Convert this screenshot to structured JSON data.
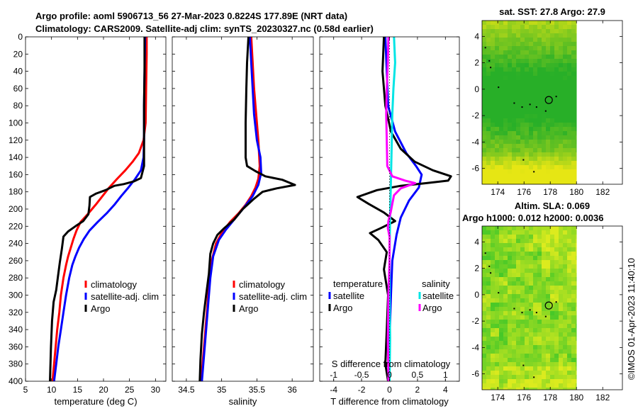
{
  "header": {
    "title_line1": "Argo profile: aoml 5906713_56 27-Mar-2023 0.8224S 177.89E (NRT data)",
    "title_line2": "Climatology: CARS2009. Satellite-adj clim: synTS_20230327.nc (0.58d earlier)",
    "copyright": "©IMOS 01-Apr-2023 11:40:10"
  },
  "colors": {
    "climatology": "#ff0000",
    "satellite": "#0000ff",
    "argo": "#000000",
    "sat_salinity": "#00e5e5",
    "argo_salinity": "#ff00ff"
  },
  "chart_data": [
    {
      "id": "temperature",
      "type": "line",
      "xlabel": "temperature (deg C)",
      "xlim": [
        5,
        32
      ],
      "xticks": [
        5,
        10,
        15,
        20,
        25,
        30
      ],
      "ylim": [
        0,
        400
      ],
      "yticks": [
        0,
        20,
        40,
        60,
        80,
        100,
        120,
        140,
        160,
        180,
        200,
        220,
        240,
        260,
        280,
        300,
        320,
        340,
        360,
        380,
        400
      ],
      "legend": [
        "climatology",
        "satellite-adj. clim",
        "Argo"
      ],
      "series": [
        {
          "name": "climatology",
          "color": "#ff0000",
          "points": [
            [
              28.3,
              0
            ],
            [
              28.3,
              20
            ],
            [
              28.2,
              60
            ],
            [
              28.1,
              100
            ],
            [
              27.7,
              120
            ],
            [
              26.8,
              135
            ],
            [
              25.6,
              145
            ],
            [
              24.2,
              155
            ],
            [
              22.6,
              165
            ],
            [
              21.1,
              175
            ],
            [
              19.8,
              185
            ],
            [
              18.5,
              195
            ],
            [
              17.1,
              205
            ],
            [
              15.6,
              215
            ],
            [
              14.8,
              225
            ],
            [
              14.2,
              235
            ],
            [
              13.7,
              245
            ],
            [
              13.2,
              255
            ],
            [
              12.8,
              265
            ],
            [
              12.3,
              280
            ],
            [
              11.8,
              300
            ],
            [
              11.5,
              320
            ],
            [
              11.1,
              340
            ],
            [
              10.8,
              360
            ],
            [
              10.5,
              380
            ],
            [
              10.2,
              400
            ]
          ]
        },
        {
          "name": "satellite-adj. clim",
          "color": "#0000ff",
          "points": [
            [
              28.0,
              0
            ],
            [
              27.9,
              40
            ],
            [
              27.8,
              80
            ],
            [
              27.8,
              120
            ],
            [
              27.7,
              140
            ],
            [
              27.2,
              155
            ],
            [
              26.1,
              165
            ],
            [
              24.8,
              175
            ],
            [
              23.4,
              185
            ],
            [
              22.1,
              195
            ],
            [
              20.6,
              205
            ],
            [
              18.9,
              215
            ],
            [
              17.3,
              225
            ],
            [
              16.2,
              235
            ],
            [
              15.3,
              245
            ],
            [
              14.6,
              255
            ],
            [
              14.0,
              265
            ],
            [
              13.4,
              280
            ],
            [
              12.8,
              300
            ],
            [
              12.3,
              320
            ],
            [
              11.8,
              340
            ],
            [
              11.3,
              360
            ],
            [
              10.9,
              380
            ],
            [
              10.5,
              400
            ]
          ]
        },
        {
          "name": "Argo",
          "color": "#000000",
          "points": [
            [
              27.9,
              0
            ],
            [
              27.9,
              40
            ],
            [
              27.8,
              80
            ],
            [
              27.8,
              120
            ],
            [
              27.8,
              150
            ],
            [
              27.2,
              164
            ],
            [
              25.8,
              168
            ],
            [
              23.9,
              171
            ],
            [
              22.1,
              173
            ],
            [
              20.4,
              178
            ],
            [
              18.6,
              182
            ],
            [
              17.4,
              186
            ],
            [
              17.3,
              196
            ],
            [
              17.1,
              206
            ],
            [
              16.1,
              214
            ],
            [
              14.6,
              220
            ],
            [
              13.2,
              226
            ],
            [
              12.3,
              232
            ],
            [
              12.0,
              246
            ],
            [
              11.6,
              262
            ],
            [
              11.2,
              280
            ],
            [
              10.9,
              294
            ],
            [
              10.4,
              308
            ],
            [
              10.1,
              330
            ],
            [
              9.9,
              360
            ],
            [
              9.7,
              400
            ]
          ]
        }
      ]
    },
    {
      "id": "salinity",
      "type": "line",
      "xlabel": "salinity",
      "xlim": [
        34.3,
        36.3
      ],
      "xticks": [
        34.5,
        35,
        35.5,
        36
      ],
      "xticklabels": [
        "34.5",
        "35",
        "35.5",
        "36"
      ],
      "ylim": [
        0,
        400
      ],
      "legend": [
        "climatology",
        "satellite-adj. clim",
        "Argo"
      ],
      "series": [
        {
          "name": "climatology",
          "color": "#ff0000",
          "points": [
            [
              35.42,
              0
            ],
            [
              35.44,
              30
            ],
            [
              35.46,
              60
            ],
            [
              35.49,
              90
            ],
            [
              35.52,
              120
            ],
            [
              35.54,
              150
            ],
            [
              35.52,
              165
            ],
            [
              35.48,
              175
            ],
            [
              35.42,
              185
            ],
            [
              35.34,
              195
            ],
            [
              35.24,
              205
            ],
            [
              35.12,
              215
            ],
            [
              35.0,
              228
            ],
            [
              34.92,
              240
            ],
            [
              34.86,
              260
            ],
            [
              34.82,
              290
            ],
            [
              34.79,
              320
            ],
            [
              34.76,
              350
            ],
            [
              34.73,
              380
            ],
            [
              34.71,
              400
            ]
          ]
        },
        {
          "name": "satellite-adj. clim",
          "color": "#0000ff",
          "points": [
            [
              35.4,
              0
            ],
            [
              35.42,
              30
            ],
            [
              35.44,
              60
            ],
            [
              35.46,
              90
            ],
            [
              35.5,
              120
            ],
            [
              35.55,
              140
            ],
            [
              35.56,
              158
            ],
            [
              35.52,
              172
            ],
            [
              35.44,
              185
            ],
            [
              35.32,
              198
            ],
            [
              35.18,
              212
            ],
            [
              35.06,
              224
            ],
            [
              34.96,
              236
            ],
            [
              34.88,
              255
            ],
            [
              34.84,
              280
            ],
            [
              34.81,
              310
            ],
            [
              34.78,
              340
            ],
            [
              34.75,
              370
            ],
            [
              34.72,
              400
            ]
          ]
        },
        {
          "name": "Argo",
          "color": "#000000",
          "points": [
            [
              35.38,
              0
            ],
            [
              35.36,
              30
            ],
            [
              35.35,
              60
            ],
            [
              35.34,
              100
            ],
            [
              35.34,
              140
            ],
            [
              35.36,
              150
            ],
            [
              35.48,
              156
            ],
            [
              35.62,
              162
            ],
            [
              35.86,
              166
            ],
            [
              36.04,
              172
            ],
            [
              35.78,
              176
            ],
            [
              35.58,
              180
            ],
            [
              35.46,
              188
            ],
            [
              35.3,
              200
            ],
            [
              35.18,
              212
            ],
            [
              35.04,
              222
            ],
            [
              34.94,
              230
            ],
            [
              34.88,
              240
            ],
            [
              34.84,
              252
            ],
            [
              34.82,
              275
            ],
            [
              34.78,
              300
            ],
            [
              34.75,
              320
            ],
            [
              34.72,
              345
            ],
            [
              34.7,
              375
            ],
            [
              34.69,
              400
            ]
          ]
        }
      ]
    },
    {
      "id": "differences",
      "type": "line",
      "xlabel": "T difference from climatology",
      "xlim": [
        -5,
        5
      ],
      "xticks": [
        -4,
        -2,
        0,
        2,
        4
      ],
      "xticklabels": [
        "-4",
        "-2",
        "0",
        "2",
        "4"
      ],
      "top_axis_label": "S difference from climatology",
      "top_xlim": [
        -1.25,
        1.25
      ],
      "top_xticks": [
        -1,
        -0.5,
        0,
        0.5,
        1
      ],
      "top_xticklabels": [
        "-1",
        "-0.5",
        "0",
        "0.5",
        "1"
      ],
      "ylim": [
        0,
        400
      ],
      "legend_temperature_title": "temperature",
      "legend_salinity_title": "salinity",
      "legend_temperature": [
        "satellite",
        "Argo"
      ],
      "legend_salinity": [
        "satellite",
        "Argo"
      ],
      "series": [
        {
          "name": "T satellite",
          "color": "#0000ff",
          "points": [
            [
              -0.3,
              0
            ],
            [
              -0.2,
              40
            ],
            [
              -0.1,
              80
            ],
            [
              0.4,
              110
            ],
            [
              1.2,
              135
            ],
            [
              1.9,
              150
            ],
            [
              2.3,
              160
            ],
            [
              2.1,
              175
            ],
            [
              1.4,
              190
            ],
            [
              0.8,
              210
            ],
            [
              0.5,
              230
            ],
            [
              0.2,
              260
            ],
            [
              0.1,
              300
            ],
            [
              0.0,
              350
            ],
            [
              0.0,
              400
            ]
          ]
        },
        {
          "name": "T Argo",
          "color": "#000000",
          "points": [
            [
              -0.4,
              0
            ],
            [
              -0.5,
              40
            ],
            [
              -0.3,
              80
            ],
            [
              0.1,
              110
            ],
            [
              0.8,
              130
            ],
            [
              1.8,
              145
            ],
            [
              3.1,
              155
            ],
            [
              4.4,
              162
            ],
            [
              4.2,
              167
            ],
            [
              2.6,
              170
            ],
            [
              0.8,
              173
            ],
            [
              -0.9,
              178
            ],
            [
              -2.3,
              186
            ],
            [
              -1.5,
              194
            ],
            [
              -0.4,
              204
            ],
            [
              0.4,
              214
            ],
            [
              -0.6,
              222
            ],
            [
              -1.4,
              228
            ],
            [
              -0.8,
              236
            ],
            [
              -0.2,
              250
            ],
            [
              -0.4,
              270
            ],
            [
              -0.1,
              300
            ],
            [
              -0.2,
              340
            ],
            [
              -0.3,
              380
            ],
            [
              -0.1,
              400
            ]
          ]
        },
        {
          "name": "S satellite",
          "color": "#00e5e5",
          "scale": "top",
          "points": [
            [
              0.08,
              0
            ],
            [
              0.1,
              30
            ],
            [
              0.07,
              60
            ],
            [
              0.05,
              90
            ],
            [
              0.04,
              120
            ],
            [
              0.03,
              150
            ],
            [
              0.02,
              180
            ],
            [
              0.01,
              210
            ],
            [
              0.0,
              250
            ],
            [
              0.0,
              300
            ],
            [
              0.01,
              350
            ],
            [
              0.0,
              400
            ]
          ]
        },
        {
          "name": "S Argo",
          "color": "#ff00ff",
          "scale": "top",
          "points": [
            [
              -0.02,
              0
            ],
            [
              -0.03,
              30
            ],
            [
              -0.05,
              60
            ],
            [
              -0.06,
              90
            ],
            [
              -0.05,
              120
            ],
            [
              -0.04,
              150
            ],
            [
              0.05,
              162
            ],
            [
              0.28,
              167
            ],
            [
              0.46,
              170
            ],
            [
              0.2,
              176
            ],
            [
              0.08,
              184
            ],
            [
              0.05,
              194
            ],
            [
              0.02,
              204
            ],
            [
              -0.02,
              214
            ],
            [
              -0.03,
              222
            ],
            [
              0.0,
              232
            ],
            [
              0.0,
              260
            ],
            [
              -0.02,
              300
            ],
            [
              -0.03,
              350
            ],
            [
              -0.02,
              400
            ]
          ]
        }
      ]
    },
    {
      "id": "sst_map",
      "type": "heatmap",
      "title": "sat. SST: 27.8 Argo: 27.9",
      "xlim": [
        172.8,
        183.5
      ],
      "ylim": [
        -7.2,
        5.2
      ],
      "data_xlim": [
        172.8,
        180
      ],
      "xticks": [
        174,
        176,
        178,
        180,
        182
      ],
      "yticks": [
        4,
        2,
        0,
        -2,
        -4,
        -6
      ],
      "argo_position": [
        177.89,
        -0.82
      ]
    },
    {
      "id": "sla_map",
      "type": "heatmap",
      "title_line1": "Altim. SLA: 0.069",
      "title_line2": "Argo h1000: 0.012 h2000: 0.0036",
      "xlim": [
        172.8,
        183.5
      ],
      "ylim": [
        -7.2,
        5.2
      ],
      "data_xlim": [
        172.8,
        180
      ],
      "xticks": [
        174,
        176,
        178,
        180,
        182
      ],
      "yticks": [
        4,
        2,
        0,
        -2,
        -4,
        -6
      ],
      "argo_position": [
        177.89,
        -0.82
      ]
    }
  ]
}
